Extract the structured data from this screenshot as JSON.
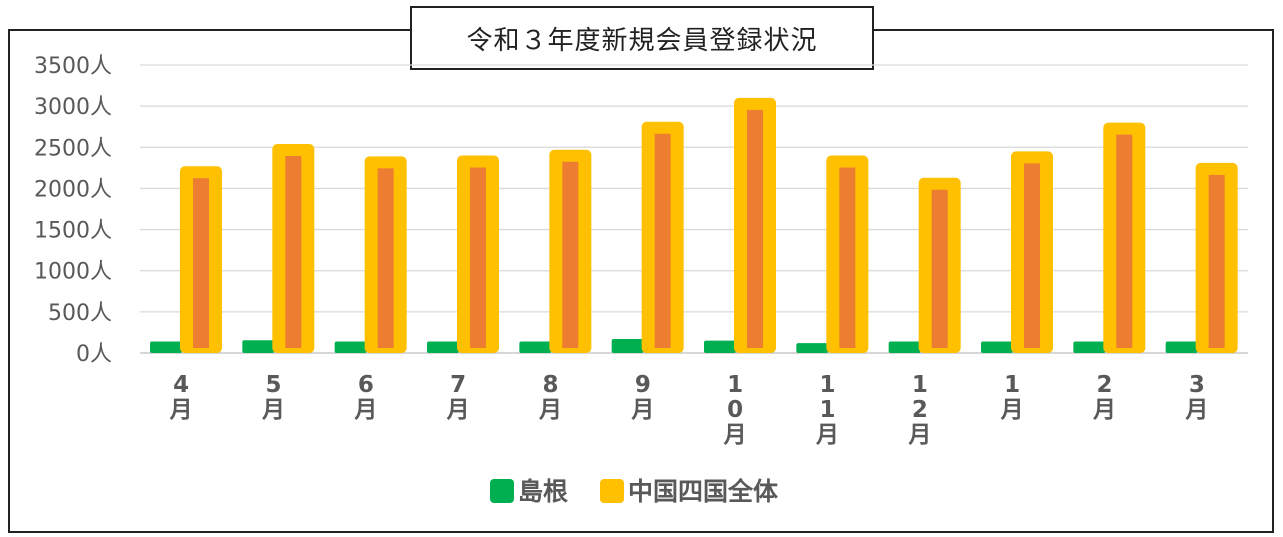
{
  "chart_data": {
    "type": "bar",
    "title": "令和３年度新規会員登録状況",
    "xlabel": "",
    "ylabel": "",
    "ylim": [
      0,
      3500
    ],
    "yticks": [
      "0人",
      "500人",
      "1000人",
      "1500人",
      "2000人",
      "2500人",
      "3000人",
      "3500人"
    ],
    "categories": [
      "4月",
      "5月",
      "6月",
      "7月",
      "8月",
      "9月",
      "10月",
      "11月",
      "12月",
      "1月",
      "2月",
      "3月"
    ],
    "category_lines": [
      [
        "4",
        "月"
      ],
      [
        "5",
        "月"
      ],
      [
        "6",
        "月"
      ],
      [
        "7",
        "月"
      ],
      [
        "8",
        "月"
      ],
      [
        "9",
        "月"
      ],
      [
        "1",
        "0",
        "月"
      ],
      [
        "1",
        "1",
        "月"
      ],
      [
        "1",
        "2",
        "月"
      ],
      [
        "1",
        "月"
      ],
      [
        "2",
        "月"
      ],
      [
        "3",
        "月"
      ]
    ],
    "series": [
      {
        "name": "島根",
        "values": [
          140,
          155,
          140,
          140,
          140,
          170,
          150,
          120,
          140,
          140,
          140,
          140
        ]
      },
      {
        "name": "中国四国全体",
        "values": [
          2270,
          2540,
          2390,
          2400,
          2470,
          2810,
          3100,
          2400,
          2130,
          2450,
          2800,
          2310
        ]
      }
    ],
    "grid": true,
    "legend_position": "bottom",
    "colors": {
      "shimane": "#00b050",
      "total_outer": "#ffc000",
      "total_inner": "#ed7d31"
    }
  }
}
